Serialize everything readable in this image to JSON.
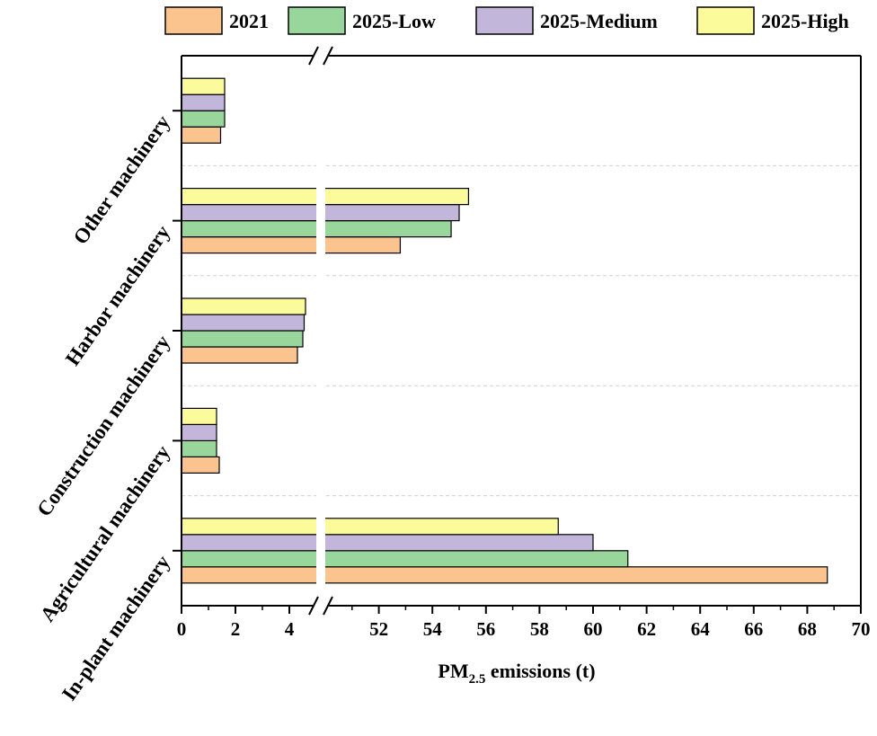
{
  "chart_data": {
    "type": "bar",
    "orientation": "horizontal",
    "categories": [
      "In-plant machinery",
      "Agricultural machinery",
      "Construction machinery",
      "Harbor machinery",
      "Other machinery"
    ],
    "series": [
      {
        "name": "2021",
        "color": "#FBC48F",
        "values": [
          68.75,
          1.4,
          4.3,
          52.8,
          1.45
        ]
      },
      {
        "name": "2025-Low",
        "color": "#99D69B",
        "values": [
          61.3,
          1.3,
          4.5,
          54.7,
          1.6
        ]
      },
      {
        "name": "2025-Medium",
        "color": "#C3B6DB",
        "values": [
          60.0,
          1.3,
          4.55,
          55.0,
          1.6
        ]
      },
      {
        "name": "2025-High",
        "color": "#FBFB9C",
        "values": [
          58.7,
          1.3,
          4.6,
          55.35,
          1.6
        ]
      }
    ],
    "xlabel": {
      "main": "PM",
      "sub": "2.5",
      "rest": " emissions (t)"
    },
    "ylabel": "",
    "x_axis_break": [
      5,
      50
    ],
    "xlim": [
      0,
      70
    ],
    "xticks_left": [
      "0",
      "2",
      "4"
    ],
    "xticks_right": [
      "52",
      "54",
      "56",
      "58",
      "60",
      "62",
      "64",
      "66",
      "68",
      "70"
    ],
    "grid": "horizontal dashed between categories",
    "legend_position": "top"
  }
}
